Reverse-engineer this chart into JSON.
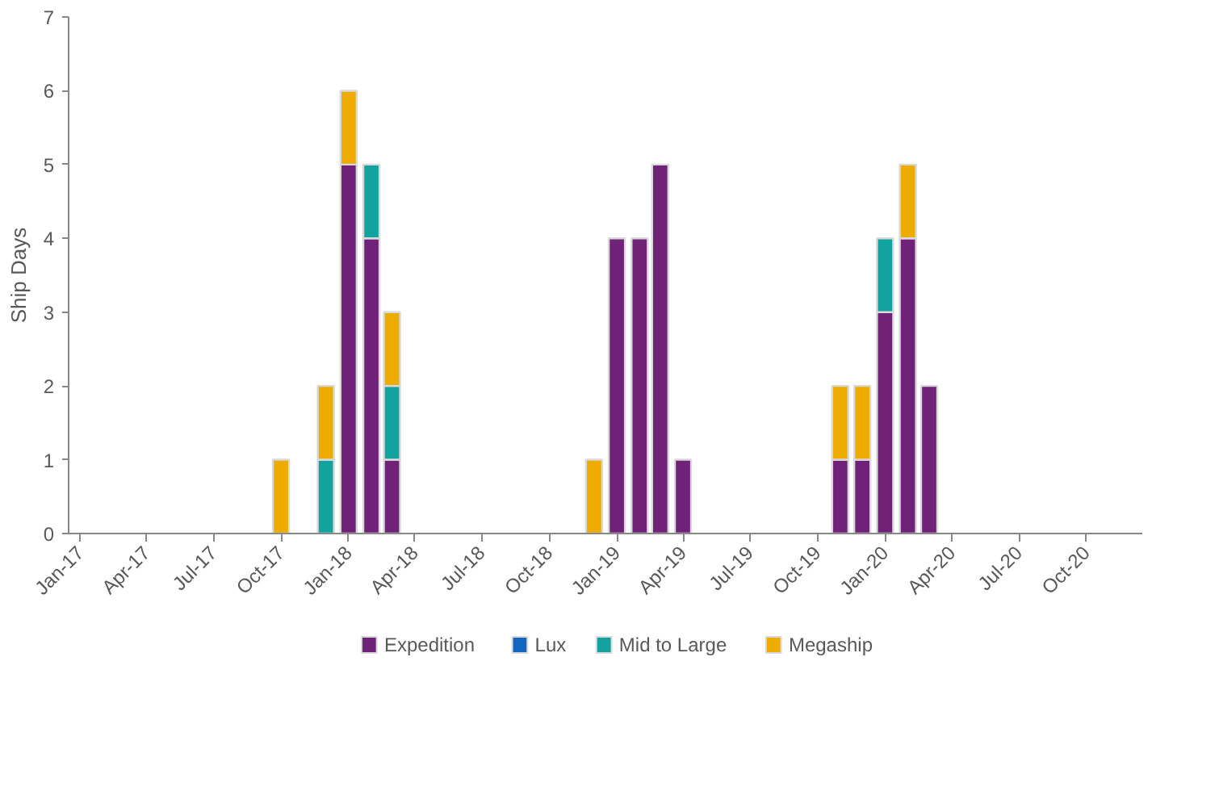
{
  "chart_data": {
    "type": "bar",
    "stacked": true,
    "ylabel": "Ship Days",
    "x": [
      "2017-10",
      "2017-12",
      "2018-01",
      "2018-02",
      "2018-03",
      "2018-12",
      "2019-01",
      "2019-02",
      "2019-03",
      "2019-04",
      "2019-11",
      "2019-12",
      "2020-01",
      "2020-02",
      "2020-03"
    ],
    "series": [
      {
        "name": "Expedition",
        "color": "#6f2277",
        "values": [
          null,
          null,
          5,
          4,
          1,
          null,
          4,
          4,
          5,
          1,
          1,
          1,
          3,
          4,
          2
        ]
      },
      {
        "name": "Lux",
        "color": "#1565c0",
        "values": [
          null,
          null,
          null,
          null,
          null,
          null,
          null,
          null,
          null,
          null,
          null,
          null,
          null,
          null,
          null
        ]
      },
      {
        "name": "Mid to Large",
        "color": "#12a3a0",
        "values": [
          null,
          1,
          null,
          1,
          1,
          null,
          null,
          null,
          null,
          null,
          null,
          null,
          1,
          null,
          null
        ]
      },
      {
        "name": "Megaship",
        "color": "#eeab00",
        "values": [
          1,
          1,
          1,
          null,
          1,
          1,
          null,
          null,
          null,
          null,
          1,
          1,
          null,
          1,
          null
        ]
      }
    ],
    "ylim": [
      0,
      7
    ],
    "yticks": [
      0,
      1,
      2,
      3,
      4,
      5,
      6,
      7
    ],
    "xlim": [
      "2016-12-16",
      "2020-12-16"
    ],
    "xticks": [
      {
        "value": "2017-01",
        "label": "Jan-17"
      },
      {
        "value": "2017-04",
        "label": "Apr-17"
      },
      {
        "value": "2017-07",
        "label": "Jul-17"
      },
      {
        "value": "2017-10",
        "label": "Oct-17"
      },
      {
        "value": "2018-01",
        "label": "Jan-18"
      },
      {
        "value": "2018-04",
        "label": "Apr-18"
      },
      {
        "value": "2018-07",
        "label": "Jul-18"
      },
      {
        "value": "2018-10",
        "label": "Oct-18"
      },
      {
        "value": "2019-01",
        "label": "Jan-19"
      },
      {
        "value": "2019-04",
        "label": "Apr-19"
      },
      {
        "value": "2019-07",
        "label": "Jul-19"
      },
      {
        "value": "2019-10",
        "label": "Oct-19"
      },
      {
        "value": "2020-01",
        "label": "Jan-20"
      },
      {
        "value": "2020-04",
        "label": "Apr-20"
      },
      {
        "value": "2020-07",
        "label": "Jul-20"
      },
      {
        "value": "2020-10",
        "label": "Oct-20"
      }
    ],
    "grid": false,
    "legend": "bottom"
  }
}
